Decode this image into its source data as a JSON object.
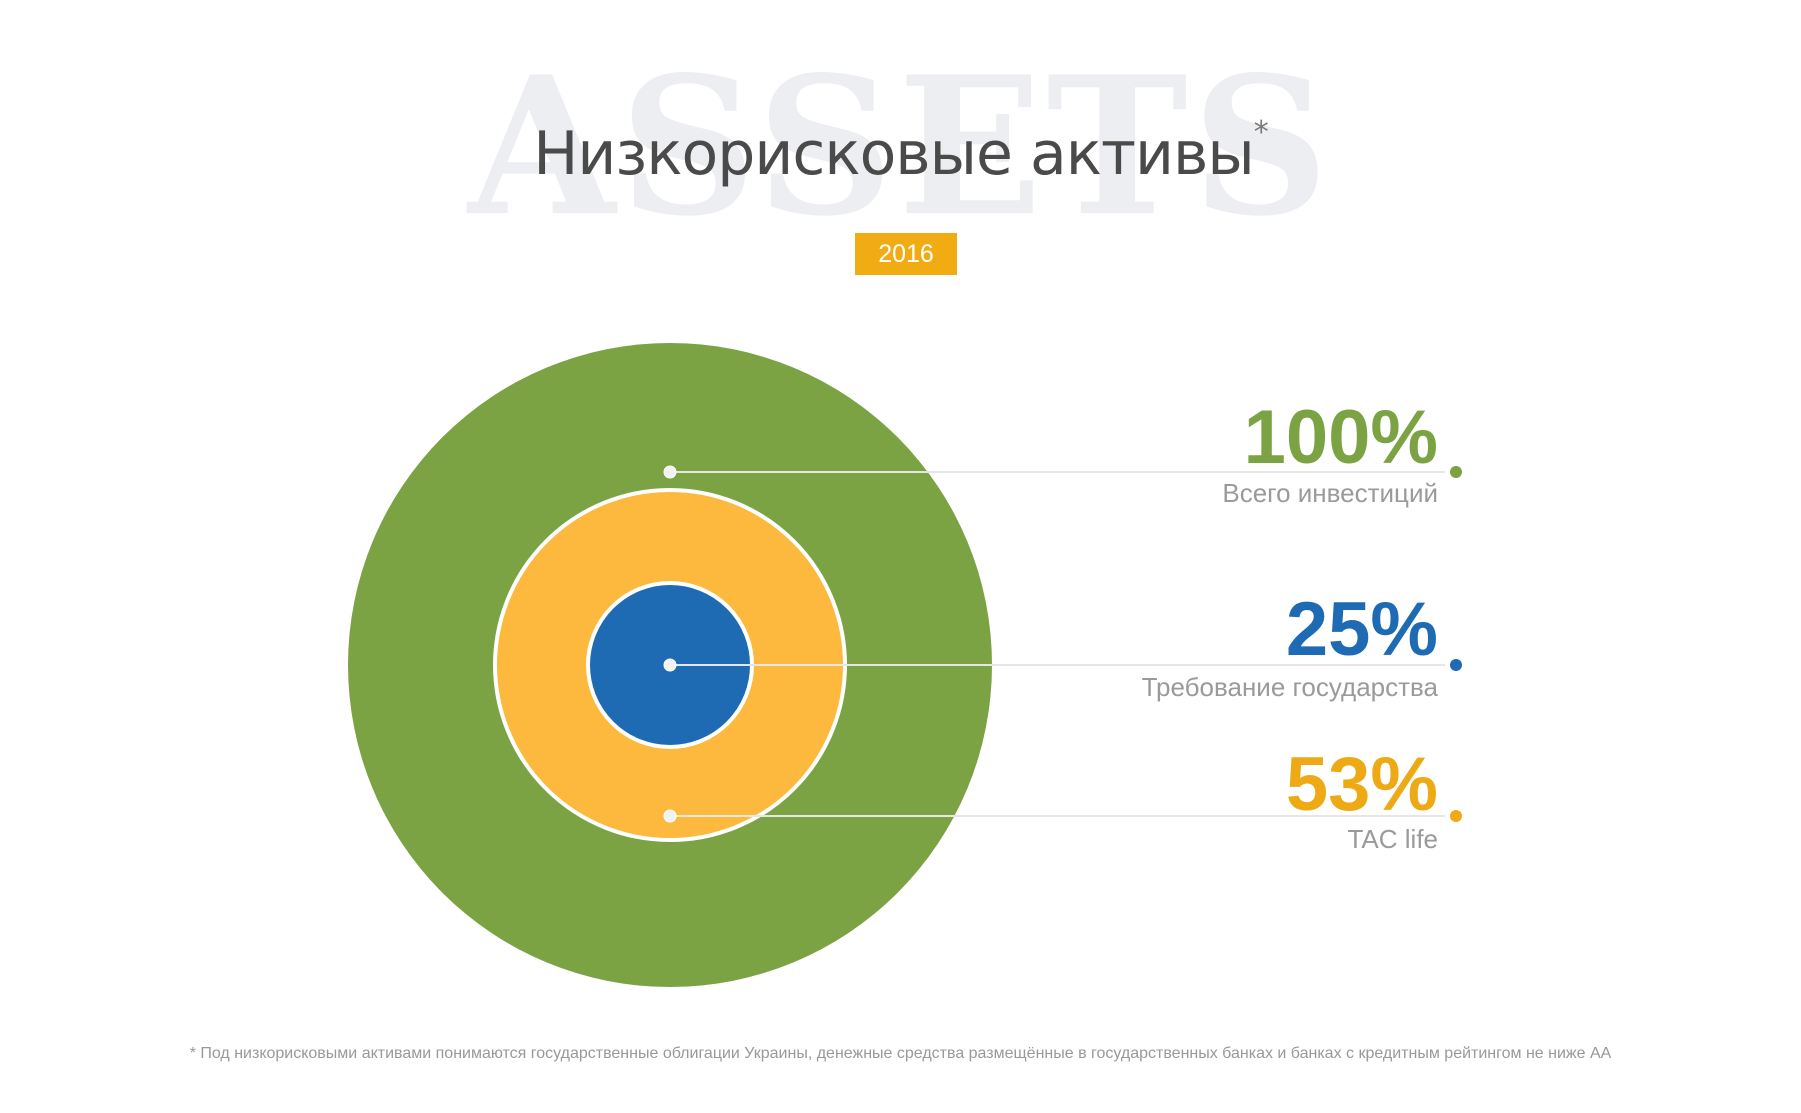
{
  "watermark": "ASSETS",
  "title": "Низкорисковые активы",
  "title_mark": "*",
  "year_badge": "2016",
  "footnote": "* Под низкорисковыми активами понимаются государственные облигации Украины, денежные средства размещённые в государственных банках и банках с кредитным рейтингом не ниже АА",
  "colors": {
    "green": "#7ba344",
    "orange": "#fcb93e",
    "blue": "#1e6bb4",
    "label_orange": "#edaa15",
    "badge": "#f0ac12"
  },
  "chart_data": {
    "type": "nested-circles",
    "unit": "%",
    "items": [
      {
        "value": 100,
        "label": "100%",
        "caption": "Всего инвестиций",
        "color": "#7ba344",
        "label_color": "#7ba344"
      },
      {
        "value": 53,
        "label": "53%",
        "caption": "TAC life",
        "color": "#fcb93e",
        "label_color": "#edaa15"
      },
      {
        "value": 25,
        "label": "25%",
        "caption": "Требование государства",
        "color": "#1e6bb4",
        "label_color": "#1e6bb4"
      }
    ]
  }
}
